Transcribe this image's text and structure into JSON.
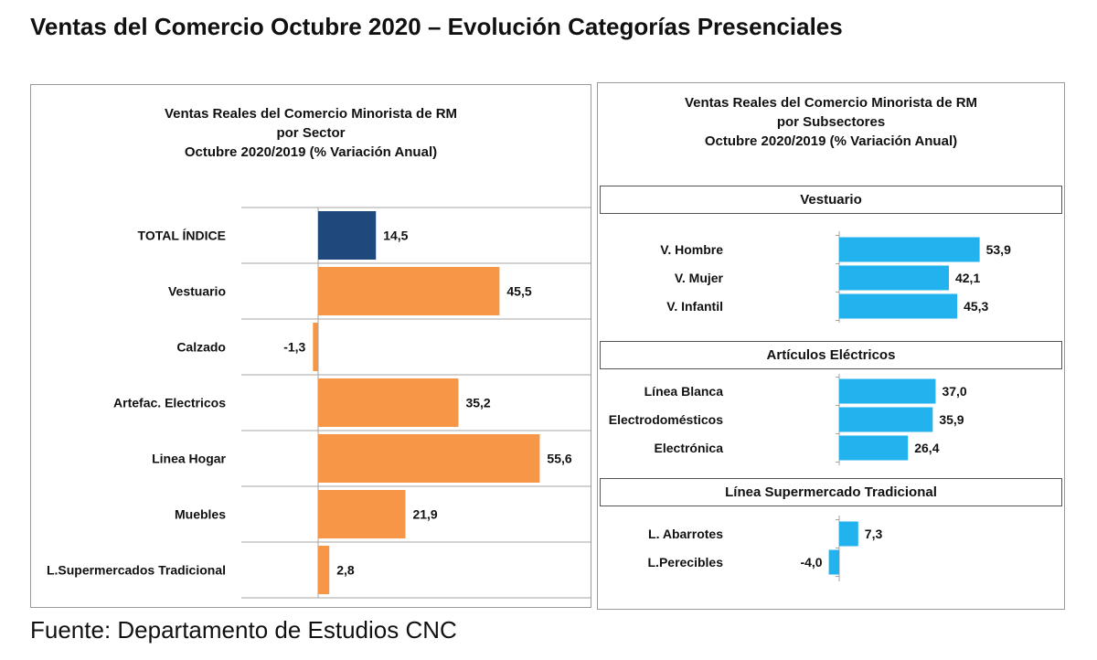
{
  "page": {
    "title": "Ventas del Comercio Octubre 2020 – Evolución Categorías Presenciales",
    "source": "Fuente: Departamento de Estudios CNC"
  },
  "colors": {
    "total": "#1f497d",
    "sector": "#f79646",
    "subsector": "#22b2ee",
    "grid": "#a6a6a6"
  },
  "chart_data": [
    {
      "type": "bar",
      "orientation": "horizontal",
      "title_lines": [
        "Ventas Reales del Comercio Minorista de RM",
        "por Sector",
        "Octubre 2020/2019 (% Variación Anual)"
      ],
      "categories": [
        "TOTAL ÍNDICE",
        "Vestuario",
        "Calzado",
        "Artefac. Electricos",
        "Linea Hogar",
        "Muebles",
        "L.Supermercados Tradicional"
      ],
      "values": [
        14.5,
        45.5,
        -1.3,
        35.2,
        55.6,
        21.9,
        2.8
      ],
      "value_labels": [
        "14,5",
        "45,5",
        "-1,3",
        "35,2",
        "55,6",
        "21,9",
        "2,8"
      ],
      "highlight": [
        true,
        false,
        false,
        false,
        false,
        false,
        false
      ],
      "grid": true
    },
    {
      "type": "bar",
      "orientation": "horizontal",
      "title_lines": [
        "Ventas Reales del Comercio Minorista de RM",
        "por Subsectores",
        "Octubre 2020/2019 (% Variación Anual)"
      ],
      "groups": [
        {
          "header": "Vestuario",
          "categories": [
            "V. Hombre",
            "V. Mujer",
            "V. Infantil"
          ],
          "values": [
            53.9,
            42.1,
            45.3
          ],
          "value_labels": [
            "53,9",
            "42,1",
            "45,3"
          ]
        },
        {
          "header": "Artículos Eléctricos",
          "categories": [
            "Línea Blanca",
            "Electrodomésticos",
            "Electrónica"
          ],
          "values": [
            37.0,
            35.9,
            26.4
          ],
          "value_labels": [
            "37,0",
            "35,9",
            "26,4"
          ]
        },
        {
          "header": "Línea Supermercado Tradicional",
          "categories": [
            "L. Abarrotes",
            "L.Perecibles"
          ],
          "values": [
            7.3,
            -4.0
          ],
          "value_labels": [
            "7,3",
            "-4,0"
          ]
        }
      ]
    }
  ]
}
